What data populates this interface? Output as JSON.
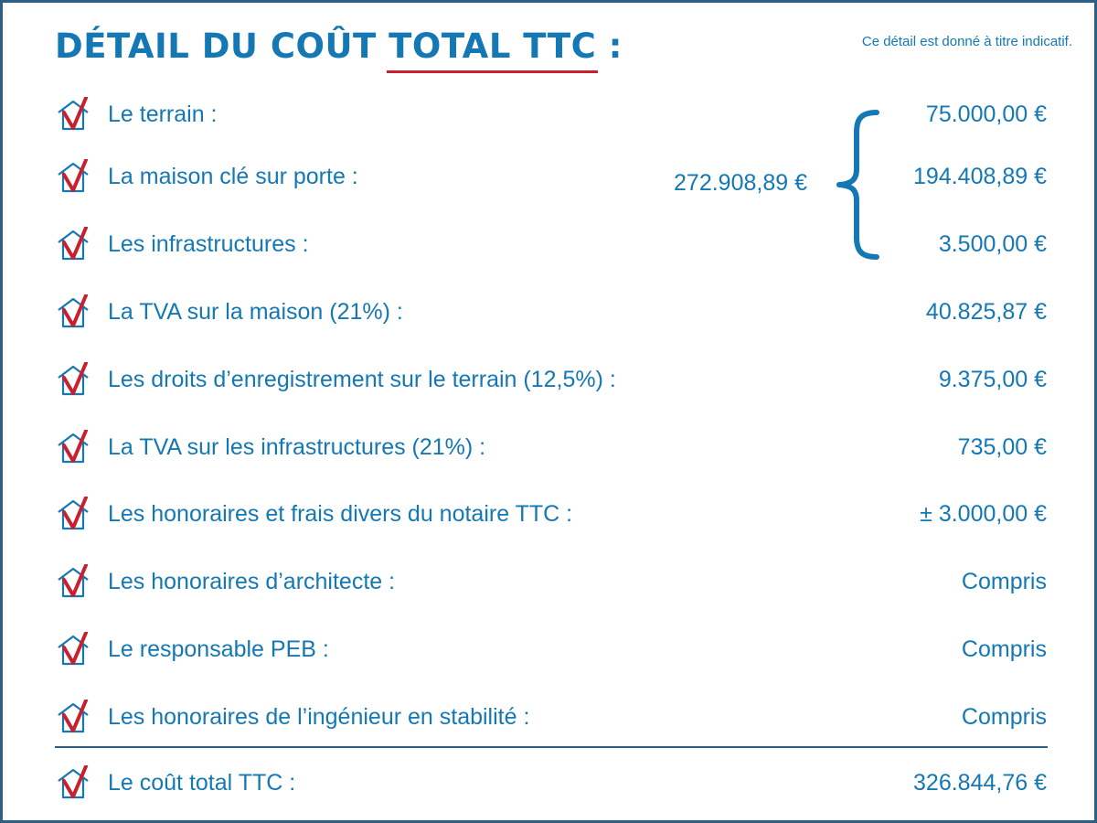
{
  "header": {
    "title_prefix": "DÉTAIL DU COÛT ",
    "title_accent": "TOTAL TTC",
    "title_suffix": " :",
    "note": "Ce détail est donné à titre indicatif."
  },
  "colors": {
    "text": "#1478b4",
    "accent": "#c8202f",
    "border": "#2b5f86"
  },
  "icon": "house-check-icon",
  "items": [
    {
      "label": "Le terrain :",
      "value": "75.000,00 €"
    },
    {
      "label": "La maison clé sur porte :",
      "value": "194.408,89 €"
    },
    {
      "label": "Les infrastructures :",
      "value": "3.500,00 €"
    },
    {
      "label": "La TVA sur la maison (21%) :",
      "value": "40.825,87 €"
    },
    {
      "label": "Les droits d’enregistrement sur le terrain (12,5%) :",
      "value": "9.375,00 €"
    },
    {
      "label": "La TVA sur les infrastructures (21%) :",
      "value": "735,00 €"
    },
    {
      "label": "Les honoraires et frais divers du notaire TTC :",
      "value": "± 3.000,00 €"
    },
    {
      "label": "Les honoraires d’architecte :",
      "value": "Compris"
    },
    {
      "label": "Le responsable PEB :",
      "value": "Compris"
    },
    {
      "label": "Les honoraires de l’ingénieur en stabilité :",
      "value": "Compris"
    }
  ],
  "subtotal": "272.908,89 €",
  "total": {
    "label": "Le coût total TTC :",
    "value": "326.844,76 €"
  }
}
